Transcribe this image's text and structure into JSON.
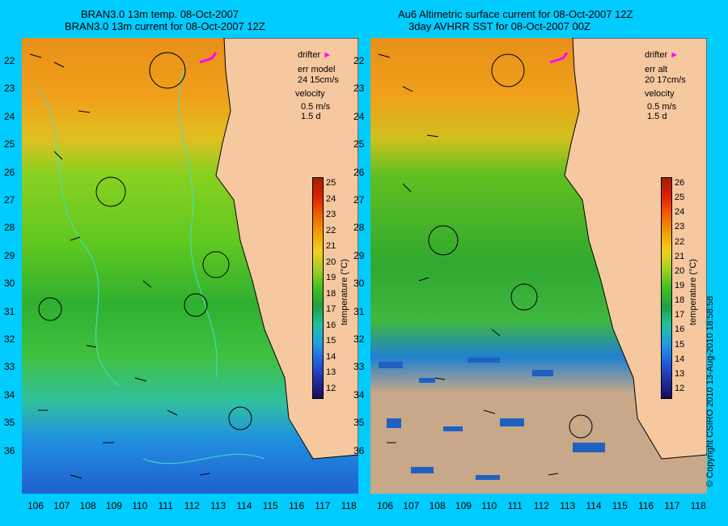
{
  "left_panel": {
    "title_line1": "BRAN3.0 13m temp. 08-Oct-2007",
    "title_line2": "BRAN3.0 13m current for 08-Oct-2007 12Z",
    "legend": {
      "drifter": "drifter",
      "err_label": "err model",
      "err_value": "24 15cm/s",
      "velocity": "velocity",
      "velocity_value": "0.5 m/s",
      "time": "1.5 d"
    },
    "colorbar": {
      "ticks": [
        "25",
        "24",
        "23",
        "22",
        "21",
        "20",
        "19",
        "18",
        "17",
        "16",
        "15",
        "14",
        "13",
        "12"
      ],
      "label": "temperature (°C)"
    }
  },
  "right_panel": {
    "title_line1": "Au6 Altimetric surface current for 08-Oct-2007 12Z",
    "title_line2": "3day AVHRR SST for 08-Oct-2007 00Z",
    "legend": {
      "drifter": "drifter",
      "err_label": "err alt",
      "err_value": "20 17cm/s",
      "velocity": "velocity",
      "velocity_value": "0.5 m/s",
      "time": "1.5 d"
    },
    "colorbar": {
      "ticks": [
        "26",
        "25",
        "24",
        "23",
        "22",
        "21",
        "20",
        "19",
        "18",
        "17",
        "16",
        "15",
        "14",
        "13",
        "12"
      ],
      "label": "temperature (°C)"
    }
  },
  "axes": {
    "latitudes": [
      "22",
      "23",
      "24",
      "25",
      "26",
      "27",
      "28",
      "29",
      "30",
      "31",
      "32",
      "33",
      "34",
      "35",
      "36"
    ],
    "longitudes": [
      "106",
      "107",
      "108",
      "109",
      "110",
      "111",
      "112",
      "113",
      "114",
      "115",
      "116",
      "117",
      "118"
    ]
  },
  "copyright": "© Copyright CSIRO 2010   13-Aug-2010 18:58:58",
  "colors": {
    "background": "#00ccff",
    "land": "#f6c8a0",
    "drifter": "#ff00ff",
    "contour": "#40e0d0"
  }
}
